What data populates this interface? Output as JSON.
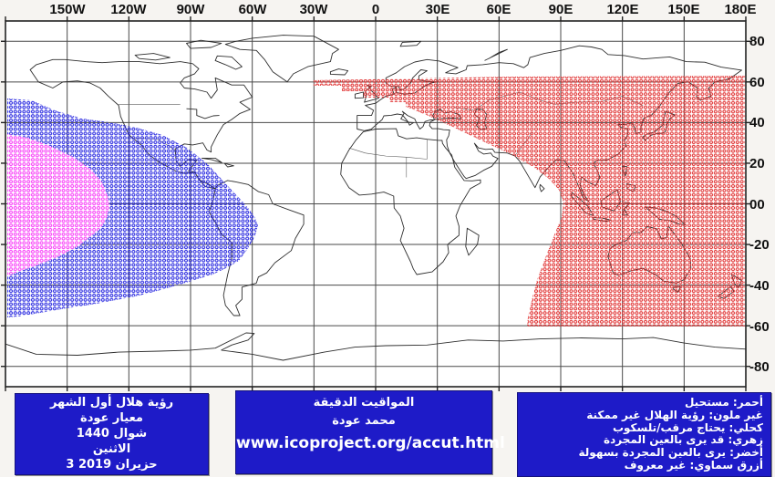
{
  "map": {
    "lon_labels": [
      "150W",
      "120W",
      "90W",
      "60W",
      "30W",
      "0",
      "30E",
      "60E",
      "90E",
      "120E",
      "150E",
      "180E"
    ],
    "lat_labels": [
      "80",
      "60",
      "40",
      "20",
      "00",
      "-20",
      "-40",
      "-60",
      "-80"
    ]
  },
  "colors": {
    "box_background": "#1e1bc8",
    "impossible_red": "#e03232",
    "telescope_navy": "#2a2ae0",
    "naked_eye_pink": "#f840f8"
  },
  "title_box": {
    "lines": [
      "رؤية هلال أول الشهر",
      "معيار عودة",
      "شوال 1440",
      "الاثنين",
      "3 حزيران 2019"
    ]
  },
  "credit_box": {
    "lines": [
      "المواقيت الدقيقة",
      "محمد عودة"
    ],
    "url": "www.icoproject.org/accut.html"
  },
  "legend_box": {
    "lines": [
      "أحمر: مستحيل",
      "غير ملون: رؤية الهلال غير ممكنة",
      "كحلي: يحتاج مرقب/تلسكوب",
      "زهري: قد يرى بالعين المجردة",
      "أخضر: يرى بالعين المجردة بسهولة",
      "أزرق سماوي: غير معروف"
    ]
  }
}
